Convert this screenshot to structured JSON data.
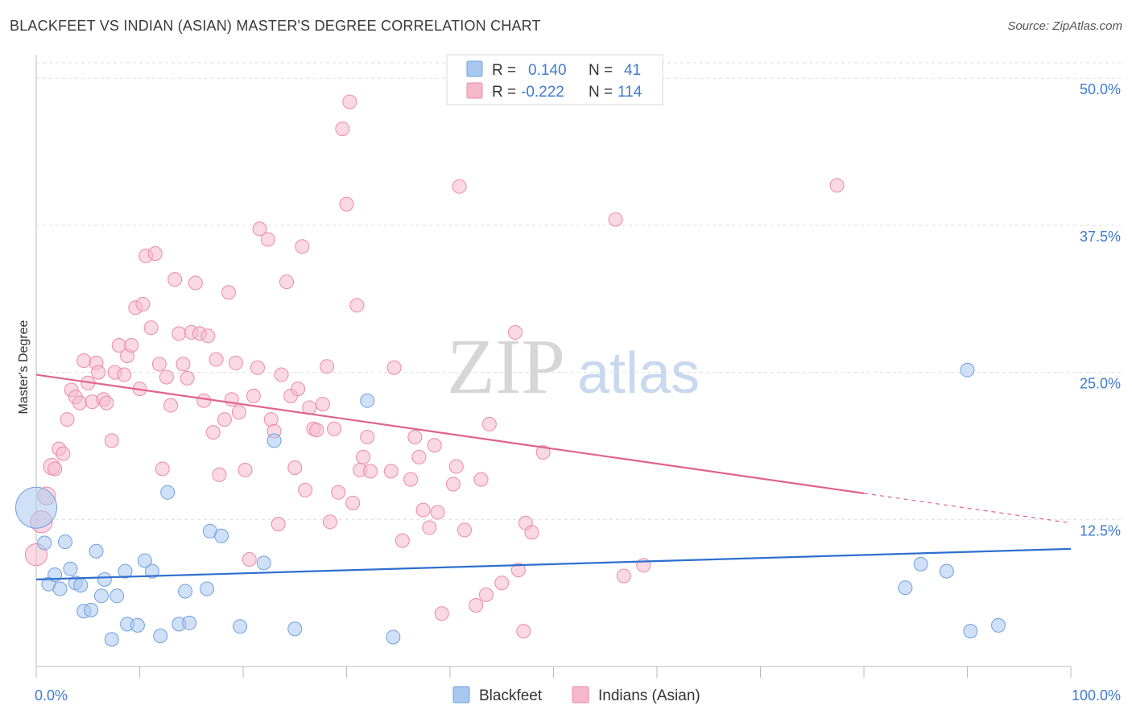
{
  "title": "BLACKFEET VS INDIAN (ASIAN) MASTER'S DEGREE CORRELATION CHART",
  "source": "Source: ZipAtlas.com",
  "watermark": {
    "zip": "ZIP",
    "atlas": "atlas"
  },
  "colors": {
    "blue_fill": "#a9c8f0",
    "blue_stroke": "#6f9fe0",
    "blue_line": "#2f6fcf",
    "pink_fill": "#f6b9cc",
    "pink_stroke": "#ec8aa8",
    "pink_line": "#e0628f",
    "grid": "#dddddd",
    "axis_text": "#3f7bd0"
  },
  "legend": {
    "rows": [
      {
        "r_label": "R =",
        "r_value": "0.140",
        "n_label": "N =",
        "n_value": "41"
      },
      {
        "r_label": "R =",
        "r_value": "-0.222",
        "n_label": "N =",
        "n_value": "114"
      }
    ]
  },
  "chart_data": {
    "type": "scatter",
    "xlabel": "",
    "ylabel": "Master's Degree",
    "xlim": [
      0,
      100
    ],
    "ylim": [
      0,
      52
    ],
    "x_tick_labels": [
      "0.0%",
      "100.0%"
    ],
    "y_ticks": [
      {
        "value": 12.5,
        "label": "12.5%"
      },
      {
        "value": 25.0,
        "label": "25.0%"
      },
      {
        "value": 37.5,
        "label": "37.5%"
      },
      {
        "value": 50.0,
        "label": "50.0%"
      }
    ],
    "series": [
      {
        "name": "Blackfeet",
        "color": "#a9c8f0",
        "trend": {
          "x0": 0,
          "y0": 7.4,
          "x1": 100,
          "y1": 10.0,
          "x_solid_end": 100
        },
        "points": [
          [
            0.0,
            13.5,
            3.0
          ],
          [
            0.8,
            10.5,
            1
          ],
          [
            1.2,
            7.0,
            1
          ],
          [
            1.8,
            7.8,
            1
          ],
          [
            2.3,
            6.6,
            1
          ],
          [
            2.8,
            10.6,
            1
          ],
          [
            3.3,
            8.3,
            1
          ],
          [
            3.8,
            7.1,
            1
          ],
          [
            4.3,
            6.9,
            1
          ],
          [
            4.6,
            4.7,
            1
          ],
          [
            5.3,
            4.8,
            1
          ],
          [
            5.8,
            9.8,
            1
          ],
          [
            6.3,
            6.0,
            1
          ],
          [
            6.6,
            7.4,
            1
          ],
          [
            7.3,
            2.3,
            1
          ],
          [
            7.8,
            6.0,
            1
          ],
          [
            8.6,
            8.1,
            1
          ],
          [
            8.8,
            3.6,
            1
          ],
          [
            9.8,
            3.5,
            1
          ],
          [
            10.5,
            9.0,
            1
          ],
          [
            11.2,
            8.1,
            1
          ],
          [
            12.0,
            2.6,
            1
          ],
          [
            12.7,
            14.8,
            1
          ],
          [
            13.8,
            3.6,
            1
          ],
          [
            14.4,
            6.4,
            1
          ],
          [
            14.8,
            3.7,
            1
          ],
          [
            16.5,
            6.6,
            1
          ],
          [
            16.8,
            11.5,
            1
          ],
          [
            17.9,
            11.1,
            1
          ],
          [
            19.7,
            3.4,
            1
          ],
          [
            22.0,
            8.8,
            1
          ],
          [
            23.0,
            19.2,
            1
          ],
          [
            25.0,
            3.2,
            1
          ],
          [
            32.0,
            22.6,
            1
          ],
          [
            34.5,
            2.5,
            1
          ],
          [
            84.0,
            6.7,
            1
          ],
          [
            85.5,
            8.7,
            1
          ],
          [
            88.0,
            8.1,
            1
          ],
          [
            90.0,
            25.2,
            1
          ],
          [
            90.3,
            3.0,
            1
          ],
          [
            93.0,
            3.5,
            1
          ]
        ]
      },
      {
        "name": "Indians (Asian)",
        "color": "#f6b9cc",
        "trend": {
          "x0": 0,
          "y0": 24.8,
          "x1": 100,
          "y1": 12.2,
          "x_solid_end": 80
        },
        "points": [
          [
            0.0,
            9.5,
            1.6
          ],
          [
            0.5,
            12.3,
            1.6
          ],
          [
            1.0,
            14.5,
            1.3
          ],
          [
            1.5,
            17.0,
            1.2
          ],
          [
            1.8,
            16.8,
            1
          ],
          [
            2.2,
            18.5,
            1
          ],
          [
            2.6,
            18.1,
            1
          ],
          [
            3.0,
            21.0,
            1
          ],
          [
            3.4,
            23.5,
            1
          ],
          [
            3.8,
            22.9,
            1
          ],
          [
            4.2,
            22.4,
            1
          ],
          [
            4.6,
            26.0,
            1
          ],
          [
            5.0,
            24.1,
            1
          ],
          [
            5.4,
            22.5,
            1
          ],
          [
            5.8,
            25.8,
            1
          ],
          [
            6.0,
            25.0,
            1
          ],
          [
            6.5,
            22.7,
            1
          ],
          [
            6.8,
            22.4,
            1
          ],
          [
            7.3,
            19.2,
            1
          ],
          [
            7.6,
            25.0,
            1
          ],
          [
            8.0,
            27.3,
            1
          ],
          [
            8.5,
            24.8,
            1
          ],
          [
            8.8,
            26.4,
            1
          ],
          [
            9.2,
            27.3,
            1
          ],
          [
            9.6,
            30.5,
            1
          ],
          [
            10.0,
            23.6,
            1
          ],
          [
            10.3,
            30.8,
            1
          ],
          [
            10.6,
            34.9,
            1
          ],
          [
            11.1,
            28.8,
            1
          ],
          [
            11.5,
            35.1,
            1
          ],
          [
            11.9,
            25.7,
            1
          ],
          [
            12.2,
            16.8,
            1
          ],
          [
            12.6,
            24.6,
            1
          ],
          [
            13.0,
            22.2,
            1
          ],
          [
            13.4,
            32.9,
            1
          ],
          [
            13.8,
            28.3,
            1
          ],
          [
            14.2,
            25.7,
            1
          ],
          [
            14.6,
            24.5,
            1
          ],
          [
            15.0,
            28.4,
            1
          ],
          [
            15.4,
            32.6,
            1
          ],
          [
            15.8,
            28.3,
            1
          ],
          [
            16.2,
            22.6,
            1
          ],
          [
            16.6,
            28.1,
            1
          ],
          [
            17.1,
            19.9,
            1
          ],
          [
            17.4,
            26.1,
            1
          ],
          [
            17.7,
            16.3,
            1
          ],
          [
            18.2,
            21.0,
            1
          ],
          [
            18.6,
            31.8,
            1
          ],
          [
            18.9,
            22.7,
            1
          ],
          [
            19.3,
            25.8,
            1
          ],
          [
            19.6,
            21.6,
            1
          ],
          [
            20.2,
            16.7,
            1
          ],
          [
            20.6,
            9.1,
            1
          ],
          [
            21.0,
            23.0,
            1
          ],
          [
            21.4,
            25.4,
            1
          ],
          [
            21.6,
            37.2,
            1
          ],
          [
            22.4,
            36.3,
            1
          ],
          [
            22.7,
            21.0,
            1
          ],
          [
            23.0,
            20.0,
            1
          ],
          [
            23.4,
            12.1,
            1
          ],
          [
            23.7,
            24.8,
            1
          ],
          [
            24.2,
            32.7,
            1
          ],
          [
            24.6,
            23.0,
            1
          ],
          [
            25.0,
            16.9,
            1
          ],
          [
            25.3,
            23.6,
            1
          ],
          [
            25.7,
            35.7,
            1
          ],
          [
            26.0,
            15.0,
            1
          ],
          [
            26.4,
            22.0,
            1
          ],
          [
            26.8,
            20.2,
            1
          ],
          [
            27.1,
            20.1,
            1
          ],
          [
            27.7,
            22.3,
            1
          ],
          [
            28.1,
            25.5,
            1
          ],
          [
            28.4,
            12.3,
            1
          ],
          [
            28.8,
            20.2,
            1
          ],
          [
            29.2,
            14.8,
            1
          ],
          [
            29.6,
            45.7,
            1
          ],
          [
            30.0,
            39.3,
            1
          ],
          [
            30.3,
            48.0,
            1
          ],
          [
            30.6,
            13.9,
            1
          ],
          [
            31.0,
            30.7,
            1
          ],
          [
            31.3,
            16.7,
            1
          ],
          [
            31.6,
            17.8,
            1
          ],
          [
            32.0,
            19.5,
            1
          ],
          [
            32.3,
            16.6,
            1
          ],
          [
            34.3,
            16.6,
            1
          ],
          [
            34.6,
            25.4,
            1
          ],
          [
            35.4,
            10.7,
            1
          ],
          [
            36.2,
            15.9,
            1
          ],
          [
            36.6,
            19.5,
            1
          ],
          [
            37.0,
            17.8,
            1
          ],
          [
            37.4,
            13.3,
            1
          ],
          [
            38.0,
            11.8,
            1
          ],
          [
            38.5,
            18.8,
            1
          ],
          [
            38.8,
            13.1,
            1
          ],
          [
            39.2,
            4.5,
            1
          ],
          [
            40.3,
            15.5,
            1
          ],
          [
            40.6,
            17.0,
            1
          ],
          [
            40.9,
            40.8,
            1
          ],
          [
            41.4,
            11.6,
            1
          ],
          [
            42.5,
            5.2,
            1
          ],
          [
            43.0,
            15.9,
            1
          ],
          [
            43.5,
            6.1,
            1
          ],
          [
            43.8,
            20.6,
            1
          ],
          [
            45.0,
            7.1,
            1
          ],
          [
            46.3,
            28.4,
            1
          ],
          [
            46.6,
            8.2,
            1
          ],
          [
            47.1,
            3.0,
            1
          ],
          [
            47.3,
            12.2,
            1
          ],
          [
            47.9,
            11.4,
            1
          ],
          [
            49.0,
            18.2,
            1
          ],
          [
            56.0,
            38.0,
            1
          ],
          [
            56.8,
            7.7,
            1
          ],
          [
            58.7,
            8.6,
            1
          ],
          [
            77.4,
            40.9,
            1
          ]
        ]
      }
    ]
  },
  "bottom_legend": [
    {
      "label": "Blackfeet",
      "color": "#a9c8f0"
    },
    {
      "label": "Indians (Asian)",
      "color": "#f6b9cc"
    }
  ]
}
